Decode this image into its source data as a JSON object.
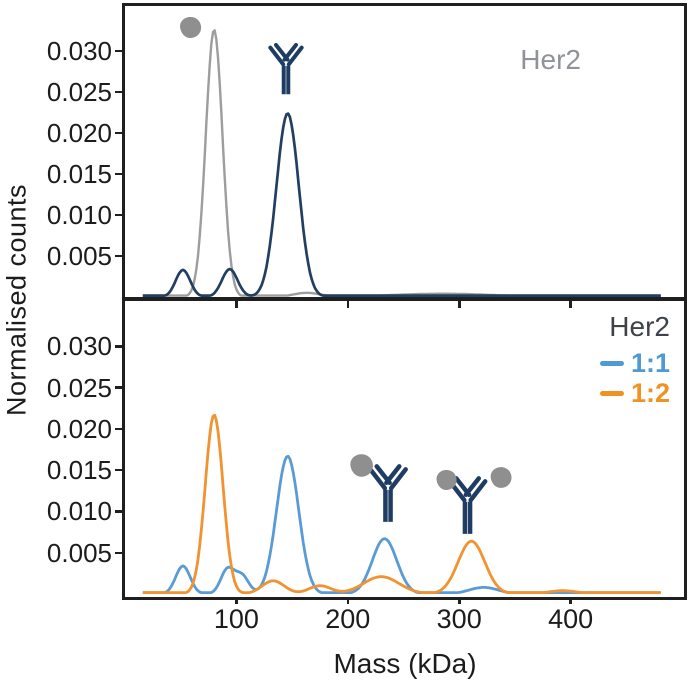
{
  "figure": {
    "xlabel": "Mass (kDa)",
    "ylabel": "Normalised counts",
    "x_ticks": [
      100,
      200,
      300,
      400
    ],
    "y_tick_labels": [
      "0.005",
      "0.010",
      "0.015",
      "0.020",
      "0.025",
      "0.030"
    ],
    "y_tick_values": [
      0.005,
      0.01,
      0.015,
      0.02,
      0.025,
      0.03
    ],
    "axis_color": "#1f1f1f",
    "text_color": "#1c1c1c"
  },
  "top_panel": {
    "legend": {
      "label": "Her2",
      "color": "#8f9398"
    }
  },
  "bottom_panel": {
    "legend": {
      "title": "Her2",
      "title_color": "#3d434b",
      "items": [
        {
          "label": "1:1",
          "color": "#4f9ad2"
        },
        {
          "label": "1:2",
          "color": "#f09222"
        }
      ]
    }
  },
  "icons": {
    "antibody_color": "#1f3d63",
    "her2_blob_color": "#8f8f8f"
  },
  "chart_data": [
    {
      "type": "line",
      "panel": "top",
      "xlabel": "Mass (kDa)",
      "ylabel": "Normalised counts",
      "xlim": [
        0,
        500
      ],
      "ylim": [
        0,
        0.0355
      ],
      "x_ticks": [
        100,
        200,
        300,
        400
      ],
      "y_ticks": [
        0.005,
        0.01,
        0.015,
        0.02,
        0.025,
        0.03
      ],
      "grid": false,
      "legend_position": "top-right",
      "series": [
        {
          "name": "Her2",
          "color": "#9d9d9d",
          "stroke": 2.4,
          "peaks": [
            {
              "mass_kda": 80,
              "height": 0.0326,
              "sigma_kda": 7.5
            },
            {
              "mass_kda": 163,
              "height": 0.0005,
              "sigma_kda": 12
            },
            {
              "mass_kda": 285,
              "height": 0.0004,
              "sigma_kda": 45
            }
          ]
        },
        {
          "name": "Antibody",
          "color": "#223f63",
          "stroke": 2.7,
          "peaks": [
            {
              "mass_kda": 52,
              "height": 0.0033,
              "sigma_kda": 6.5
            },
            {
              "mass_kda": 94,
              "height": 0.0034,
              "sigma_kda": 7
            },
            {
              "mass_kda": 146,
              "height": 0.0224,
              "sigma_kda": 10
            }
          ]
        }
      ],
      "annotations": [
        {
          "icon": "her2-blob-icon",
          "near_mass_kda": 55
        },
        {
          "icon": "antibody-icon",
          "near_mass_kda": 145
        }
      ]
    },
    {
      "type": "line",
      "panel": "bottom",
      "xlabel": "Mass (kDa)",
      "ylabel": "Normalised counts",
      "xlim": [
        0,
        500
      ],
      "ylim": [
        0,
        0.0355
      ],
      "x_ticks": [
        100,
        200,
        300,
        400
      ],
      "y_ticks": [
        0.005,
        0.01,
        0.015,
        0.02,
        0.025,
        0.03
      ],
      "grid": false,
      "legend_position": "top-right",
      "series": [
        {
          "name": "1:1",
          "color": "#5b9bd5",
          "stroke": 2.8,
          "peaks": [
            {
              "mass_kda": 52,
              "height": 0.0034,
              "sigma_kda": 6.5
            },
            {
              "mass_kda": 92,
              "height": 0.003,
              "sigma_kda": 6
            },
            {
              "mass_kda": 105,
              "height": 0.0022,
              "sigma_kda": 6
            },
            {
              "mass_kda": 146,
              "height": 0.0167,
              "sigma_kda": 10
            },
            {
              "mass_kda": 233,
              "height": 0.0067,
              "sigma_kda": 11
            },
            {
              "mass_kda": 322,
              "height": 0.0008,
              "sigma_kda": 13
            }
          ]
        },
        {
          "name": "1:2",
          "color": "#f09330",
          "stroke": 2.8,
          "peaks": [
            {
              "mass_kda": 80,
              "height": 0.0217,
              "sigma_kda": 8
            },
            {
              "mass_kda": 133,
              "height": 0.0016,
              "sigma_kda": 10
            },
            {
              "mass_kda": 175,
              "height": 0.001,
              "sigma_kda": 10
            },
            {
              "mass_kda": 230,
              "height": 0.0021,
              "sigma_kda": 16
            },
            {
              "mass_kda": 311,
              "height": 0.0064,
              "sigma_kda": 12
            },
            {
              "mass_kda": 393,
              "height": 0.0004,
              "sigma_kda": 13
            }
          ]
        }
      ],
      "annotations": [
        {
          "icon": "antibody-1-her2-icon",
          "near_mass_kda": 233
        },
        {
          "icon": "antibody-2-her2-icon",
          "near_mass_kda": 310
        }
      ]
    }
  ]
}
